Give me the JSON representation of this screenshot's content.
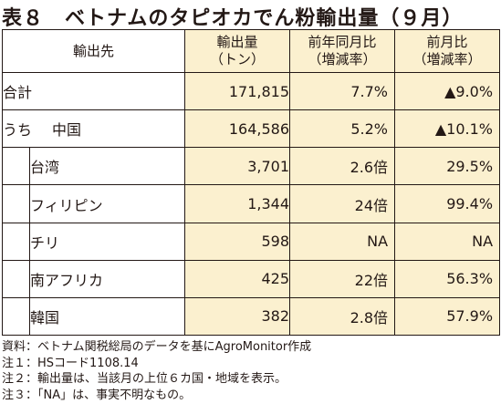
{
  "title": "表８　ベトナムのタピオカでん粉輸出量（９月）",
  "table": {
    "headers": {
      "dest": "輸出先",
      "volume_1": "輸出量",
      "volume_2": "（トン）",
      "yoy_1": "前年同月比",
      "yoy_2": "（増減率）",
      "mom_1": "前月比",
      "mom_2": "（増減率）"
    },
    "total": {
      "label": "合計",
      "volume": "171,815",
      "yoy": "7.7%",
      "mom": "▲9.0%"
    },
    "uchi_label": "うち",
    "rows": [
      {
        "label": "中国",
        "volume": "164,586",
        "yoy": "5.2%",
        "mom": "▲10.1%"
      },
      {
        "label": "台湾",
        "volume": "3,701",
        "yoy": "2.6倍",
        "mom": "29.5%"
      },
      {
        "label": "フィリピン",
        "volume": "1,344",
        "yoy": "24倍",
        "mom": "99.4%"
      },
      {
        "label": "チリ",
        "volume": "598",
        "yoy": "NA",
        "mom": "NA"
      },
      {
        "label": "南アフリカ",
        "volume": "425",
        "yoy": "22倍",
        "mom": "56.3%"
      },
      {
        "label": "韓国",
        "volume": "382",
        "yoy": "2.8倍",
        "mom": "57.9%"
      }
    ]
  },
  "notes": [
    "資料：ベトナム関税総局のデータを基にAgroMonitor作成",
    "注１：HSコード1108.14",
    "注２：輸出量は、当該月の上位６カ国・地域を表示。",
    "注３：「NA」は、事実不明なもの。"
  ]
}
